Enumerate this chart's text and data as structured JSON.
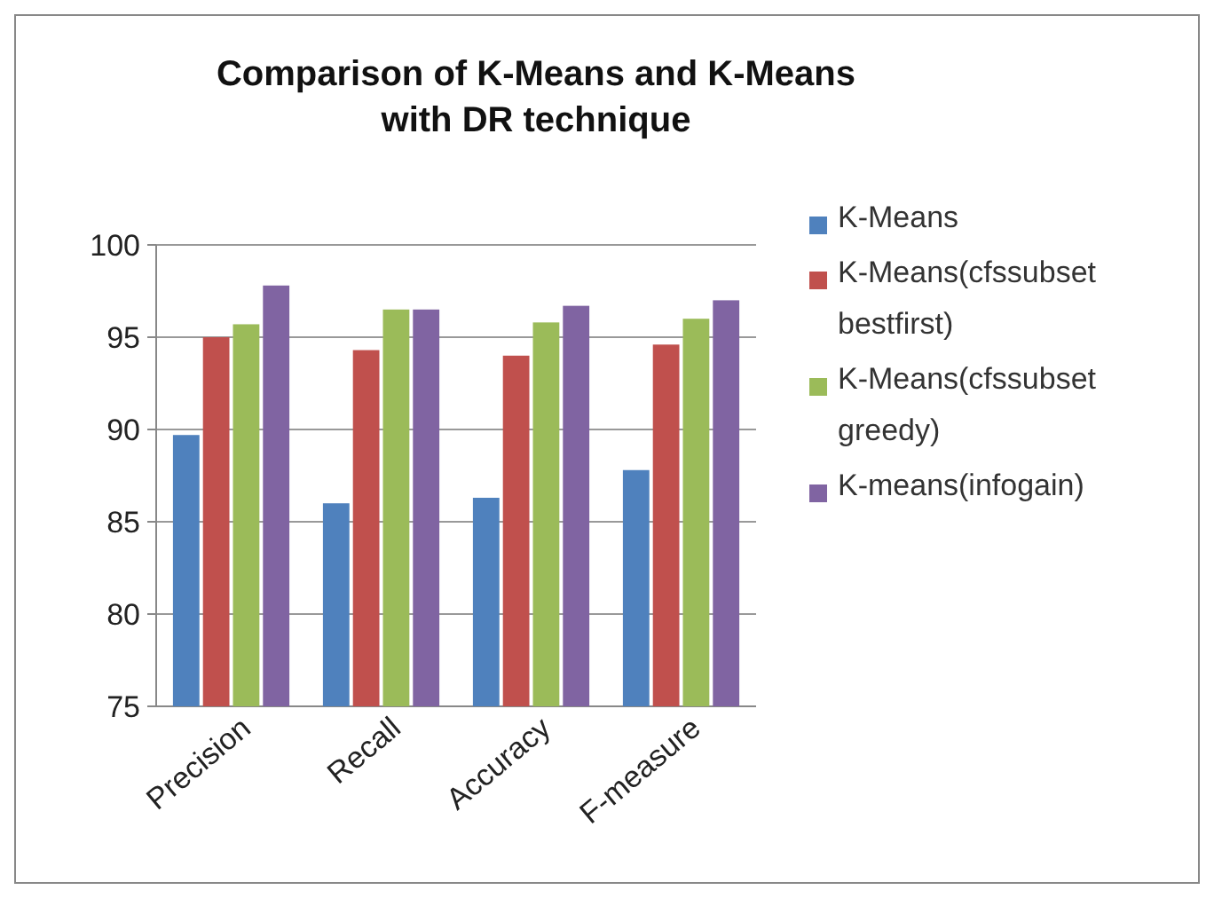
{
  "chart_data": {
    "type": "bar",
    "title": "Comparison of K-Means and K-Means with DR technique",
    "categories": [
      "Precision",
      "Recall",
      "Accuracy",
      "F-measure"
    ],
    "series": [
      {
        "name": "K-Means",
        "color": "#4f81bd",
        "values": [
          89.7,
          86,
          86.3,
          87.8
        ]
      },
      {
        "name": "K-Means(cfssubset bestfirst)",
        "color": "#c0504d",
        "values": [
          95,
          94.3,
          94,
          94.6
        ]
      },
      {
        "name": "K-Means(cfssubset greedy)",
        "color": "#9bbb59",
        "values": [
          95.7,
          96.5,
          95.8,
          96
        ]
      },
      {
        "name": "K-means(infogain)",
        "color": "#8064a2",
        "values": [
          97.8,
          96.5,
          96.7,
          97
        ]
      }
    ],
    "ylim": [
      75,
      100
    ],
    "yticks": [
      75,
      80,
      85,
      90,
      95,
      100
    ],
    "grid": "y",
    "legend": "right"
  }
}
